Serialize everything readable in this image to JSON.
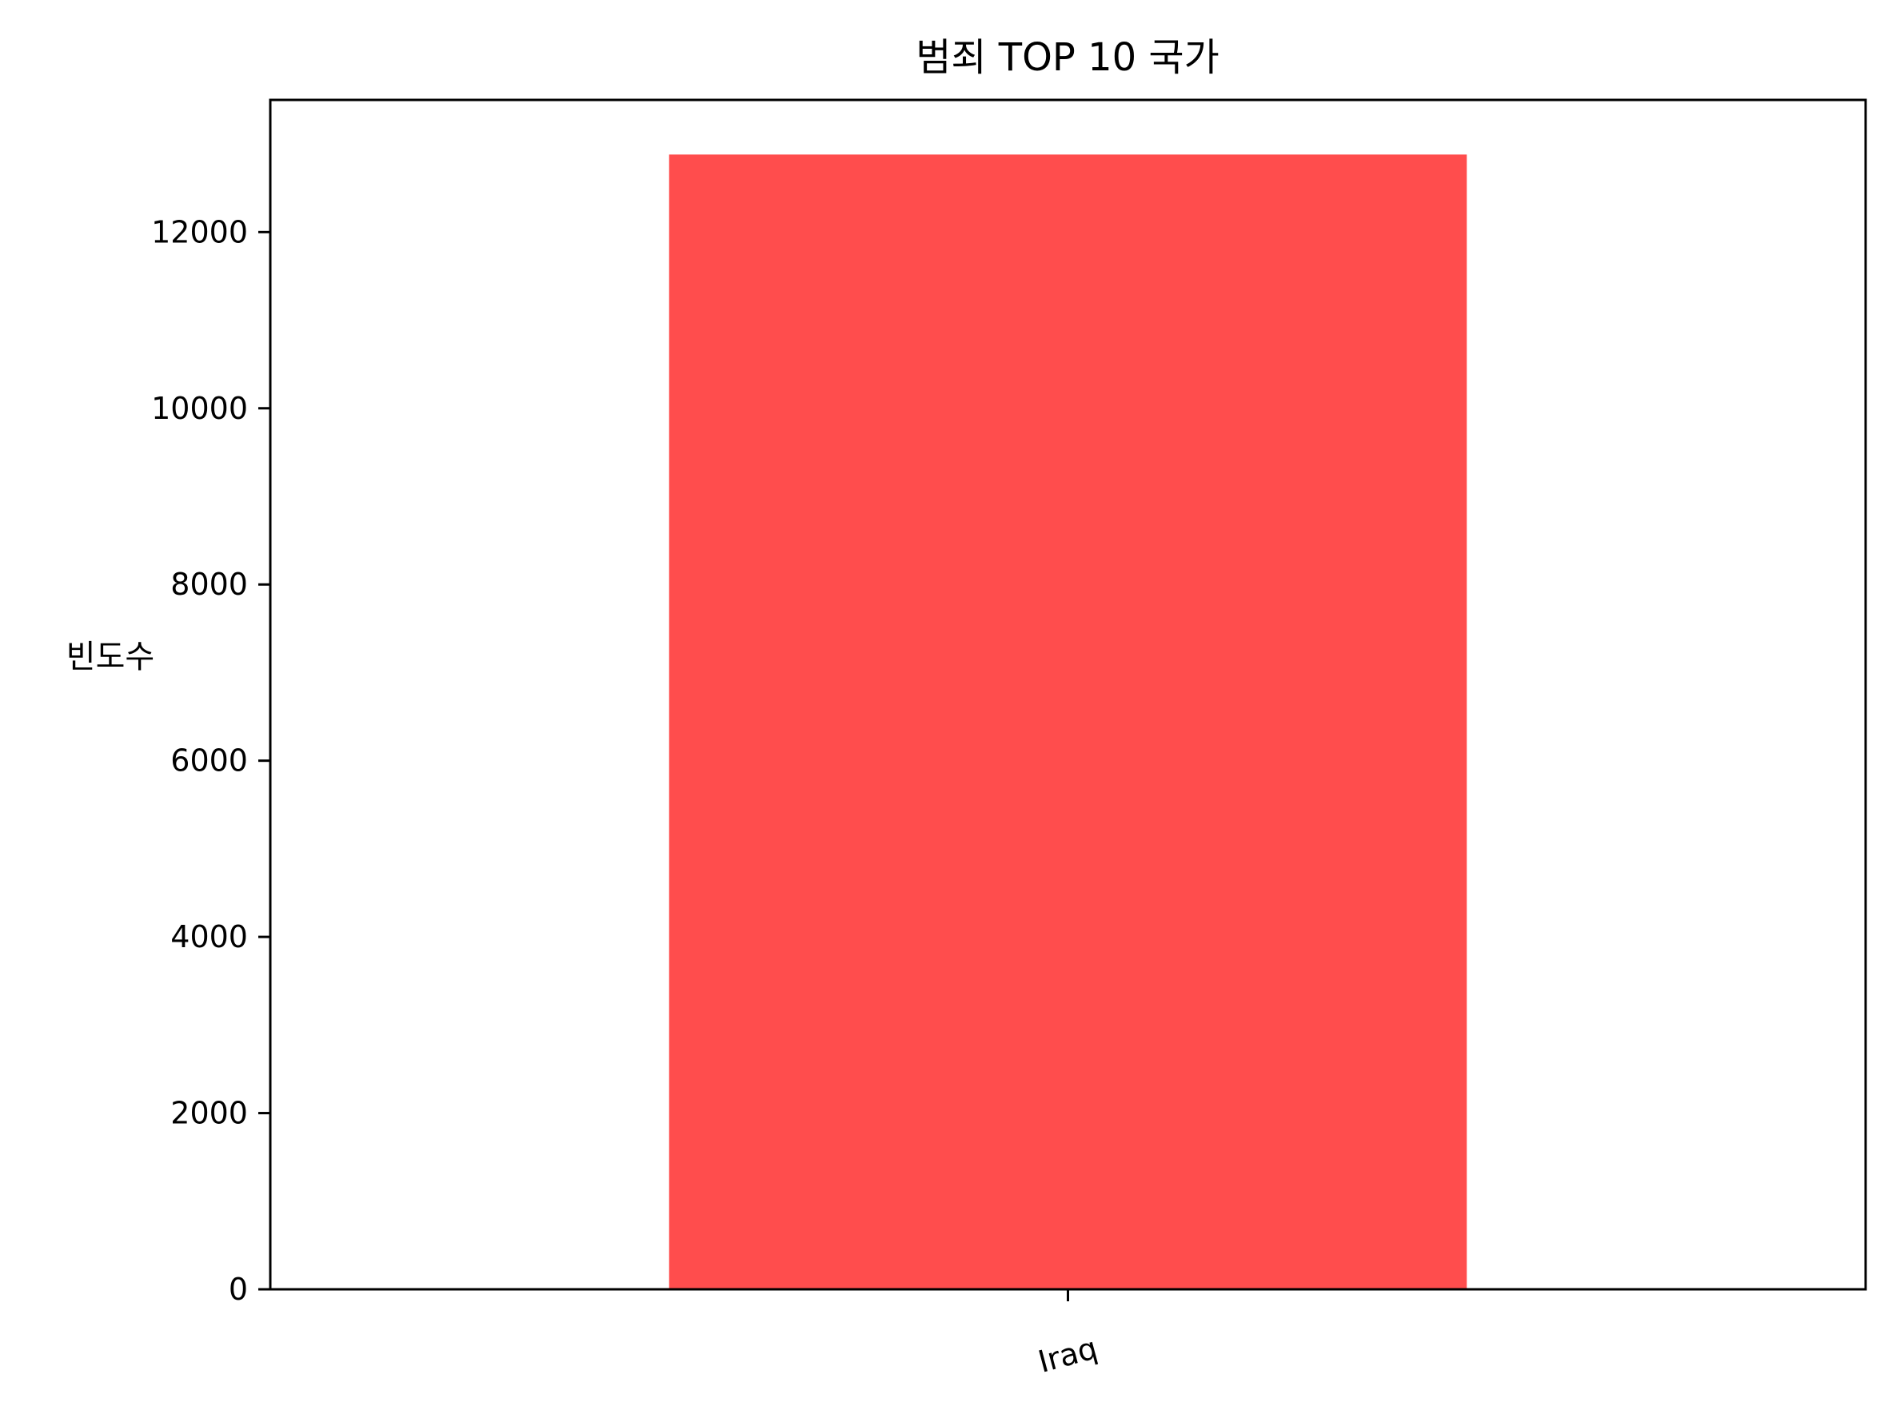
{
  "chart_data": {
    "type": "bar",
    "title": "범죄 TOP 10 국가",
    "xlabel": "",
    "ylabel": "빈도수",
    "categories": [
      "Iraq"
    ],
    "values": [
      12880
    ],
    "ylim": [
      0,
      13500
    ],
    "yticks": [
      0,
      2000,
      4000,
      6000,
      8000,
      10000,
      12000
    ],
    "bar_color": "#ff4d4d",
    "grid": false,
    "legend": "none"
  }
}
